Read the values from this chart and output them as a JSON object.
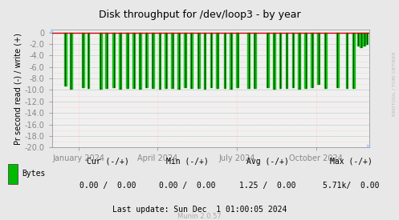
{
  "title": "Disk throughput for /dev/loop3 - by year",
  "ylabel": "Pr second read (-) / write (+)",
  "background_color": "#e8e8e8",
  "plot_background_color": "#f0f0f0",
  "grid_color_major": "#cccccc",
  "grid_color_minor": "#ffbbbb",
  "ylim": [
    -20.0,
    0.5
  ],
  "ytick_vals": [
    0.0,
    -2.0,
    -4.0,
    -6.0,
    -8.0,
    -10.0,
    -12.0,
    -14.0,
    -16.0,
    -18.0,
    -20.0
  ],
  "ytick_labels": [
    "0",
    "-2.0",
    "-4.0",
    "-6.0",
    "-8.0",
    "-10.0",
    "-12.0",
    "-14.0",
    "-16.0",
    "-18.0",
    "-20.0"
  ],
  "bar_color_fill": "#00bb00",
  "bar_color_edge": "#004400",
  "line_color_red": "#cc0000",
  "title_color": "#000000",
  "watermark_color": "#bbbbbb",
  "legend_label": "Bytes",
  "cur_label": "Cur (-/+)",
  "cur_val": "0.00 /  0.00",
  "min_label": "Min (-/+)",
  "min_val": "0.00 /  0.00",
  "avg_label": "Avg (-/+)",
  "avg_val": "1.25 /  0.00",
  "max_label": "Max (-/+)",
  "max_val": "5.71k/  0.00",
  "last_update": "Last update: Sun Dec  1 01:00:05 2024",
  "munin_version": "Munin 2.0.57",
  "watermark": "RRDTOOL / TOBI OETIKER",
  "x_tick_labels": [
    "January 2024",
    "April 2024",
    "July 2024",
    "October 2024"
  ],
  "spike_x": [
    0.042,
    0.06,
    0.098,
    0.115,
    0.154,
    0.172,
    0.195,
    0.215,
    0.238,
    0.258,
    0.278,
    0.298,
    0.318,
    0.34,
    0.36,
    0.38,
    0.4,
    0.42,
    0.44,
    0.462,
    0.482,
    0.502,
    0.522,
    0.545,
    0.565,
    0.585,
    0.62,
    0.64,
    0.68,
    0.7,
    0.72,
    0.74,
    0.76,
    0.78,
    0.8,
    0.82,
    0.84,
    0.862,
    0.9,
    0.93,
    0.951,
    0.965,
    0.975,
    0.985,
    0.993
  ],
  "spike_depths": [
    -9.3,
    -9.8,
    -9.5,
    -9.7,
    -9.8,
    -9.6,
    -9.5,
    -9.8,
    -9.7,
    -9.6,
    -9.8,
    -9.5,
    -9.7,
    -9.8,
    -9.6,
    -9.7,
    -9.8,
    -9.5,
    -9.6,
    -9.7,
    -9.8,
    -9.5,
    -9.7,
    -9.6,
    -9.8,
    -9.5,
    -9.7,
    -9.6,
    -9.5,
    -9.8,
    -9.6,
    -9.7,
    -9.5,
    -9.8,
    -9.6,
    -9.5,
    -9.0,
    -9.7,
    -9.5,
    -9.6,
    -9.7,
    -2.2,
    -2.5,
    -2.3,
    -2.0
  ]
}
